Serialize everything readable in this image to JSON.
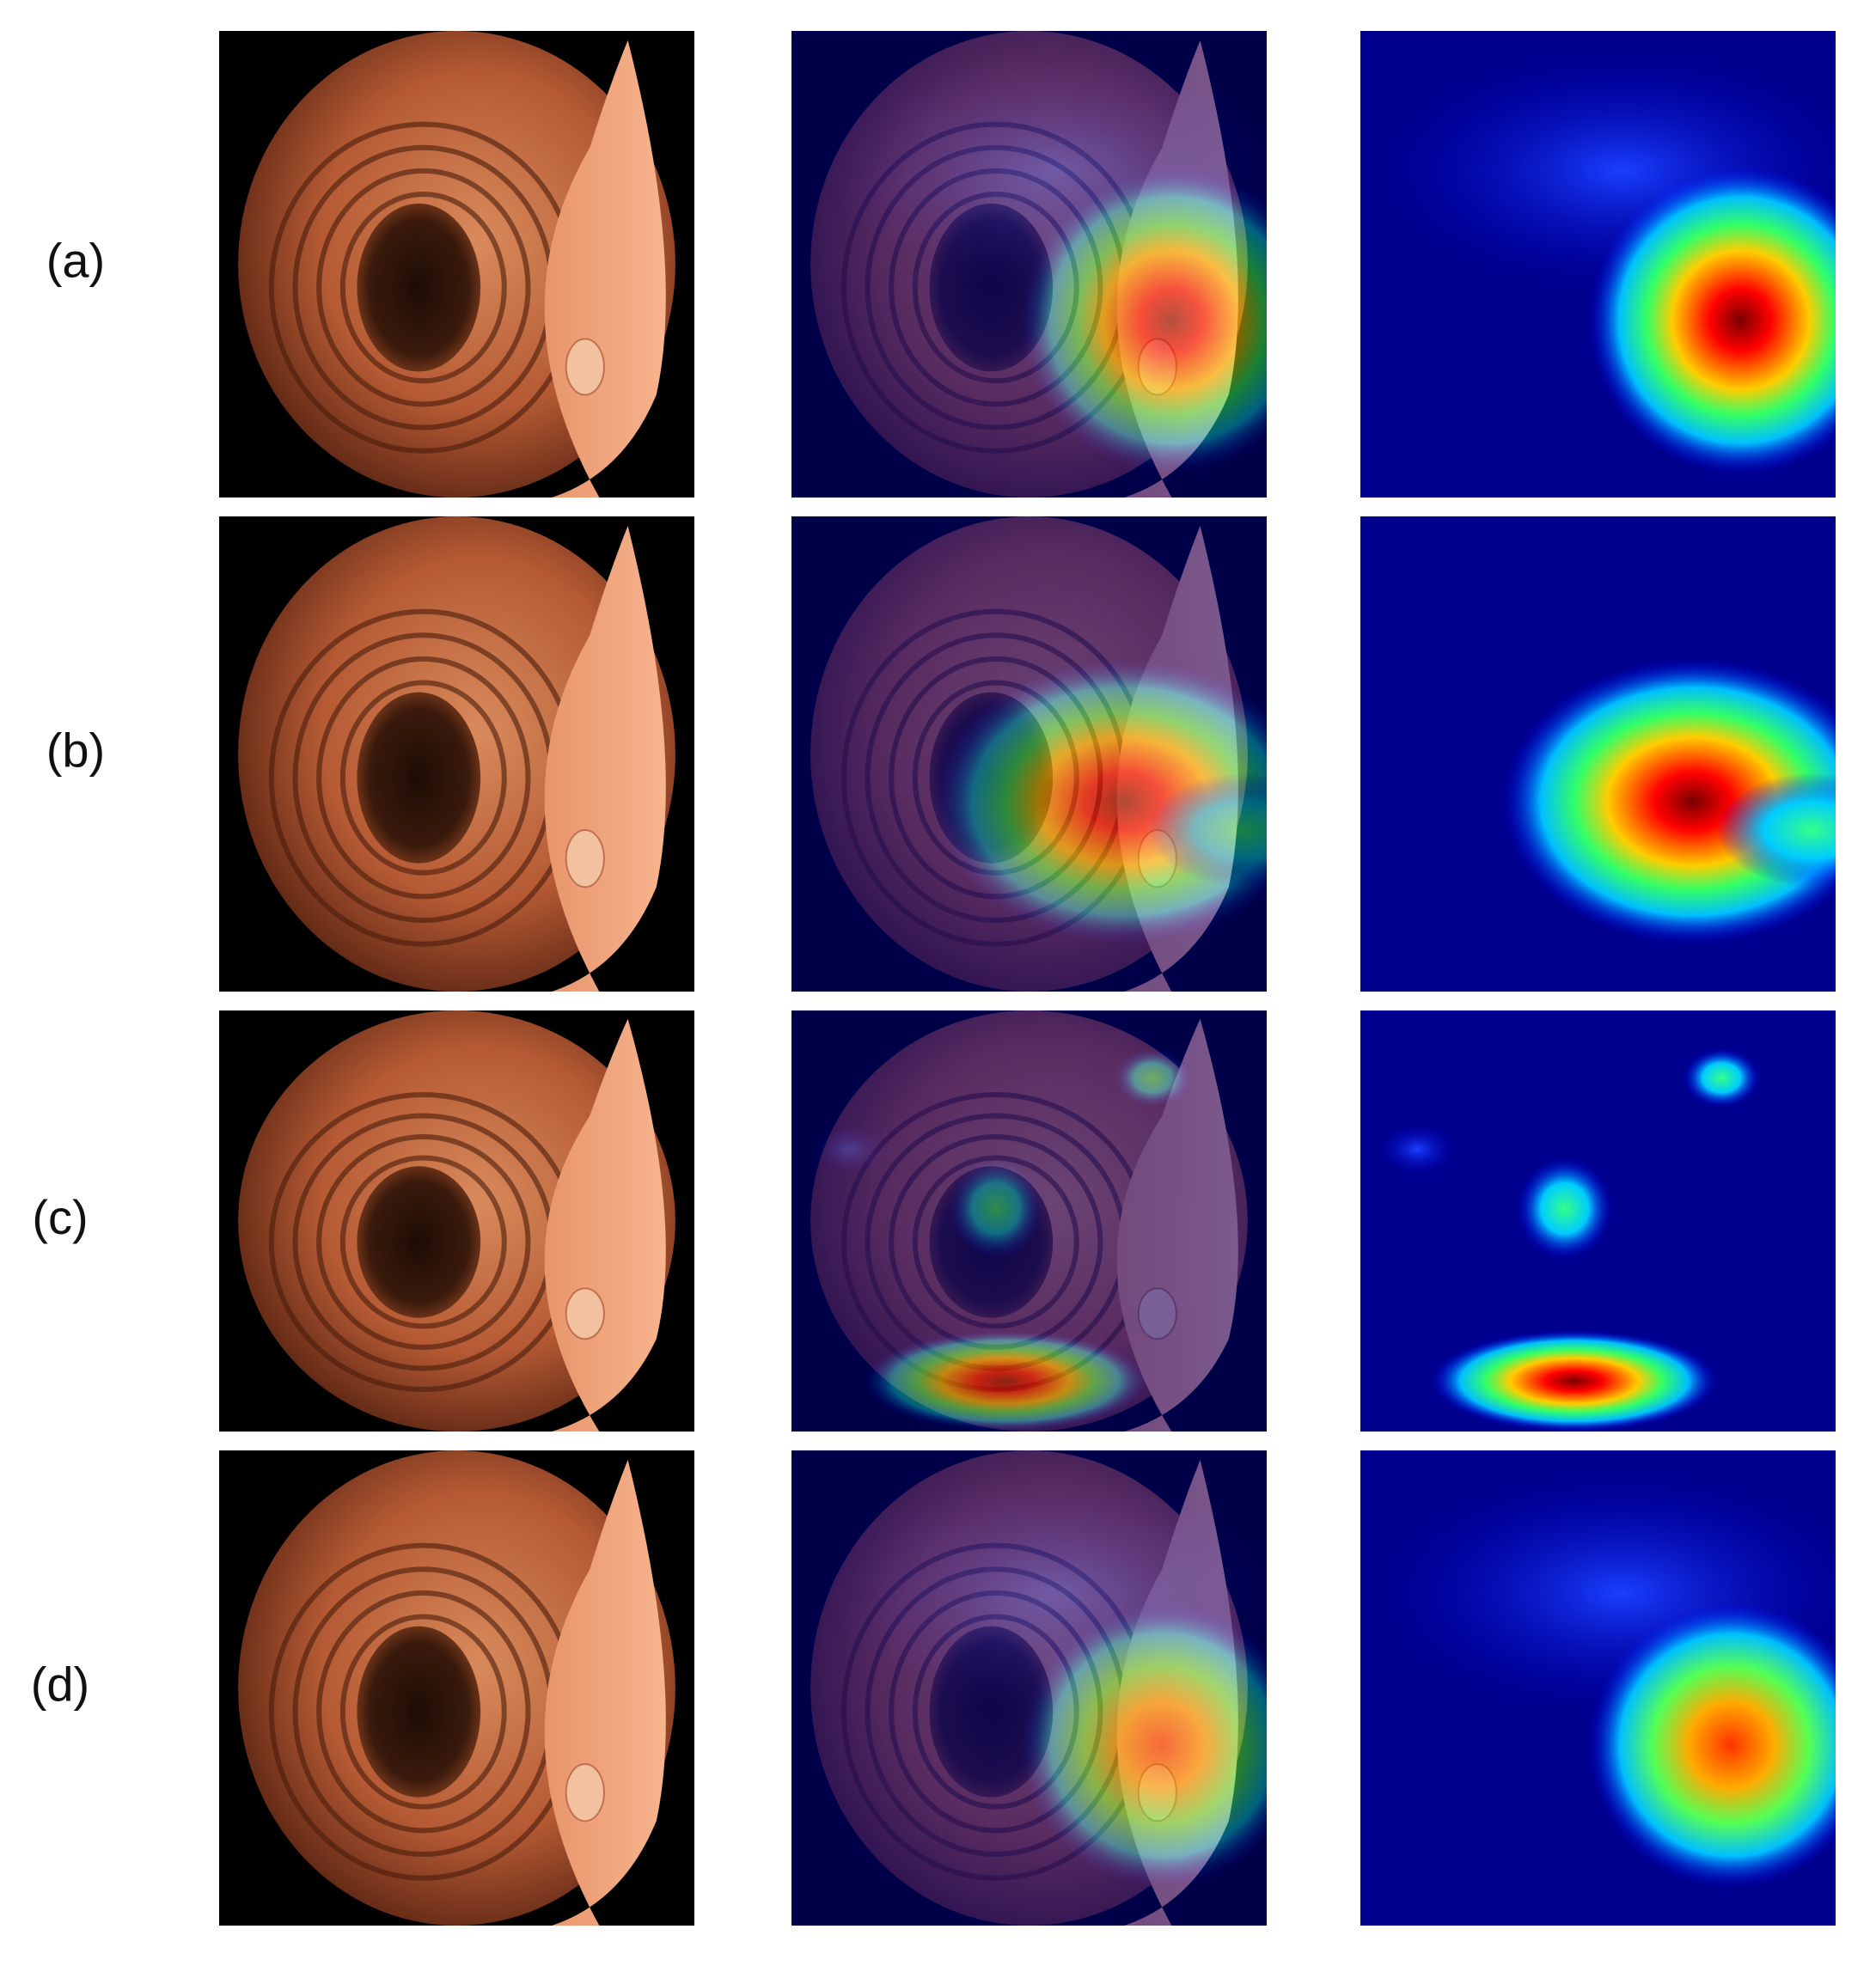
{
  "rows": [
    {
      "label": "(a)"
    },
    {
      "label": "(b)"
    },
    {
      "label": "(c)"
    },
    {
      "label": "(d)"
    }
  ]
}
